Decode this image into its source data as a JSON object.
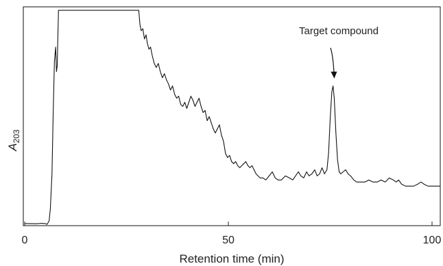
{
  "chart_data": {
    "type": "line",
    "title": "",
    "xlabel": "Retention time (min)",
    "ylabel": {
      "main": "A",
      "sub": "203"
    },
    "xlim": [
      0,
      100
    ],
    "ylim": [
      0,
      1
    ],
    "x_ticks": [
      0,
      50,
      100
    ],
    "grid": false,
    "legend": "none",
    "annotations": [
      {
        "text": "Target compound",
        "x": 76,
        "y": 0.72,
        "arrow": true
      }
    ],
    "series": [
      {
        "color": "#111111",
        "points": [
          [
            0.0,
            0.007
          ],
          [
            3.0,
            0.006
          ],
          [
            4.0,
            0.008
          ],
          [
            5.0,
            0.007
          ],
          [
            5.5,
            0.003
          ],
          [
            6.0,
            0.02
          ],
          [
            6.3,
            0.08
          ],
          [
            6.7,
            0.25
          ],
          [
            7.0,
            0.55
          ],
          [
            7.3,
            0.8
          ],
          [
            7.6,
            0.87
          ],
          [
            7.8,
            0.75
          ],
          [
            8.0,
            0.78
          ],
          [
            8.1,
            0.88
          ],
          [
            8.3,
            1.05
          ],
          [
            28.0,
            1.05
          ],
          [
            28.3,
            0.98
          ],
          [
            28.6,
            0.95
          ],
          [
            29.0,
            0.96
          ],
          [
            29.4,
            0.91
          ],
          [
            29.8,
            0.93
          ],
          [
            30.1,
            0.89
          ],
          [
            30.5,
            0.86
          ],
          [
            30.9,
            0.87
          ],
          [
            31.3,
            0.83
          ],
          [
            31.8,
            0.79
          ],
          [
            32.3,
            0.77
          ],
          [
            32.8,
            0.79
          ],
          [
            33.3,
            0.75
          ],
          [
            33.8,
            0.72
          ],
          [
            34.3,
            0.74
          ],
          [
            34.8,
            0.71
          ],
          [
            35.3,
            0.69
          ],
          [
            35.8,
            0.66
          ],
          [
            36.3,
            0.68
          ],
          [
            36.8,
            0.64
          ],
          [
            37.3,
            0.62
          ],
          [
            37.8,
            0.63
          ],
          [
            38.3,
            0.59
          ],
          [
            38.8,
            0.58
          ],
          [
            39.3,
            0.6
          ],
          [
            39.8,
            0.57
          ],
          [
            40.3,
            0.6
          ],
          [
            40.8,
            0.63
          ],
          [
            41.3,
            0.61
          ],
          [
            41.8,
            0.58
          ],
          [
            42.3,
            0.6
          ],
          [
            42.8,
            0.62
          ],
          [
            43.3,
            0.58
          ],
          [
            43.8,
            0.55
          ],
          [
            44.3,
            0.56
          ],
          [
            44.8,
            0.51
          ],
          [
            45.3,
            0.53
          ],
          [
            45.8,
            0.5
          ],
          [
            46.3,
            0.47
          ],
          [
            46.8,
            0.45
          ],
          [
            47.3,
            0.47
          ],
          [
            47.8,
            0.49
          ],
          [
            48.3,
            0.44
          ],
          [
            48.8,
            0.41
          ],
          [
            49.3,
            0.35
          ],
          [
            49.8,
            0.33
          ],
          [
            50.3,
            0.34
          ],
          [
            50.8,
            0.31
          ],
          [
            51.3,
            0.3
          ],
          [
            51.8,
            0.31
          ],
          [
            52.3,
            0.29
          ],
          [
            52.8,
            0.28
          ],
          [
            53.3,
            0.29
          ],
          [
            53.8,
            0.3
          ],
          [
            54.3,
            0.31
          ],
          [
            54.8,
            0.29
          ],
          [
            55.3,
            0.28
          ],
          [
            55.8,
            0.29
          ],
          [
            56.3,
            0.27
          ],
          [
            56.8,
            0.25
          ],
          [
            57.3,
            0.24
          ],
          [
            57.8,
            0.23
          ],
          [
            58.5,
            0.23
          ],
          [
            59.2,
            0.22
          ],
          [
            60.0,
            0.24
          ],
          [
            60.8,
            0.26
          ],
          [
            61.5,
            0.23
          ],
          [
            62.2,
            0.22
          ],
          [
            63.0,
            0.22
          ],
          [
            64.0,
            0.24
          ],
          [
            65.0,
            0.23
          ],
          [
            65.8,
            0.22
          ],
          [
            66.5,
            0.24
          ],
          [
            67.2,
            0.26
          ],
          [
            67.8,
            0.24
          ],
          [
            68.5,
            0.23
          ],
          [
            69.2,
            0.26
          ],
          [
            69.8,
            0.24
          ],
          [
            70.5,
            0.25
          ],
          [
            71.2,
            0.27
          ],
          [
            71.8,
            0.24
          ],
          [
            72.4,
            0.25
          ],
          [
            73.0,
            0.28
          ],
          [
            73.6,
            0.25
          ],
          [
            74.2,
            0.27
          ],
          [
            74.6,
            0.35
          ],
          [
            75.0,
            0.52
          ],
          [
            75.4,
            0.65
          ],
          [
            75.7,
            0.68
          ],
          [
            76.0,
            0.62
          ],
          [
            76.4,
            0.45
          ],
          [
            76.8,
            0.32
          ],
          [
            77.2,
            0.26
          ],
          [
            77.6,
            0.25
          ],
          [
            78.2,
            0.26
          ],
          [
            78.8,
            0.27
          ],
          [
            79.4,
            0.25
          ],
          [
            80.0,
            0.24
          ],
          [
            80.8,
            0.22
          ],
          [
            81.5,
            0.21
          ],
          [
            82.5,
            0.21
          ],
          [
            83.5,
            0.21
          ],
          [
            84.5,
            0.22
          ],
          [
            85.5,
            0.21
          ],
          [
            86.5,
            0.21
          ],
          [
            87.5,
            0.22
          ],
          [
            88.5,
            0.21
          ],
          [
            89.5,
            0.23
          ],
          [
            90.5,
            0.22
          ],
          [
            91.2,
            0.21
          ],
          [
            91.8,
            0.22
          ],
          [
            92.5,
            0.2
          ],
          [
            93.5,
            0.19
          ],
          [
            94.5,
            0.19
          ],
          [
            95.5,
            0.19
          ],
          [
            96.5,
            0.2
          ],
          [
            97.3,
            0.21
          ],
          [
            98.0,
            0.2
          ],
          [
            99.0,
            0.19
          ],
          [
            100.0,
            0.19
          ],
          [
            102.0,
            0.19
          ]
        ]
      }
    ]
  }
}
